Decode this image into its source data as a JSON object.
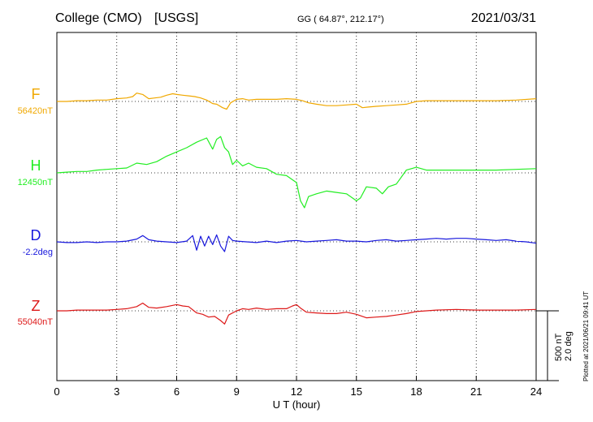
{
  "header": {
    "station": "College (CMO)",
    "source": "[USGS]",
    "coords": "GG ( 64.87°, 212.17°)",
    "date": "2021/03/31"
  },
  "chart_data": {
    "type": "line",
    "xlabel": "U T (hour)",
    "xlim": [
      0,
      24
    ],
    "xticks": [
      0,
      3,
      6,
      9,
      12,
      15,
      18,
      21,
      24
    ],
    "grid": true,
    "scale_bar": {
      "label1": "500 nT",
      "label2": "2.0 deg"
    },
    "series": [
      {
        "name": "F",
        "baseline_label": "56420nT",
        "color": "#f0a800",
        "x": [
          0,
          0.5,
          1,
          1.5,
          2,
          2.5,
          3,
          3.5,
          3.8,
          4.0,
          4.3,
          4.6,
          4.9,
          5.2,
          5.5,
          5.8,
          6.0,
          6.3,
          6.6,
          6.9,
          7.2,
          7.5,
          7.8,
          8.0,
          8.3,
          8.5,
          8.7,
          9.0,
          9.3,
          9.6,
          10,
          10.5,
          11,
          11.5,
          12,
          12.3,
          12.6,
          13,
          13.5,
          14,
          14.5,
          15,
          15.3,
          15.6,
          16,
          16.5,
          17,
          17.5,
          18,
          18.5,
          19,
          20,
          21,
          22,
          23,
          24
        ],
        "values": [
          0,
          0,
          5,
          5,
          10,
          10,
          20,
          25,
          35,
          60,
          50,
          20,
          25,
          30,
          45,
          55,
          50,
          45,
          40,
          35,
          25,
          10,
          -15,
          -20,
          -45,
          -55,
          -10,
          15,
          20,
          10,
          15,
          15,
          15,
          20,
          15,
          5,
          -10,
          -20,
          -30,
          -30,
          -25,
          -20,
          -45,
          -40,
          -35,
          -30,
          -25,
          -20,
          0,
          5,
          5,
          5,
          5,
          5,
          10,
          20
        ]
      },
      {
        "name": "H",
        "baseline_label": "12450nT",
        "color": "#22ee22",
        "x": [
          0,
          0.5,
          1,
          1.5,
          2,
          2.5,
          3,
          3.5,
          4,
          4.5,
          5,
          5.5,
          6,
          6.5,
          7,
          7.5,
          7.8,
          8,
          8.2,
          8.4,
          8.6,
          8.8,
          9,
          9.3,
          9.6,
          10,
          10.5,
          11,
          11.5,
          12,
          12.2,
          12.4,
          12.6,
          13,
          13.5,
          14,
          14.5,
          15,
          15.2,
          15.5,
          16,
          16.3,
          16.6,
          17,
          17.5,
          18,
          18.5,
          19,
          20,
          21,
          22,
          23,
          24
        ],
        "values": [
          0,
          5,
          10,
          10,
          20,
          25,
          30,
          35,
          70,
          60,
          80,
          120,
          150,
          180,
          220,
          250,
          170,
          240,
          260,
          180,
          150,
          60,
          90,
          50,
          70,
          40,
          30,
          -10,
          -20,
          -70,
          -200,
          -250,
          -170,
          -150,
          -130,
          -140,
          -150,
          -200,
          -180,
          -100,
          -110,
          -150,
          -100,
          -80,
          20,
          40,
          20,
          20,
          20,
          20,
          20,
          25,
          30
        ]
      },
      {
        "name": "D",
        "baseline_label": "-2.2deg",
        "color": "#1818dd",
        "x": [
          0,
          0.5,
          1,
          1.5,
          2,
          2.5,
          3,
          3.5,
          4,
          4.3,
          4.6,
          5,
          5.5,
          6,
          6.5,
          6.8,
          7,
          7.2,
          7.4,
          7.6,
          7.8,
          8,
          8.2,
          8.4,
          8.6,
          8.8,
          9,
          9.5,
          10,
          10.5,
          11,
          11.5,
          12,
          12.5,
          13,
          13.5,
          14,
          14.5,
          15,
          15.5,
          16,
          16.5,
          17,
          17.5,
          18,
          18.5,
          19,
          19.5,
          20,
          20.5,
          21,
          21.5,
          22,
          22.5,
          23,
          23.5,
          24
        ],
        "values": [
          0,
          -5,
          -5,
          0,
          -5,
          0,
          0,
          5,
          20,
          45,
          15,
          5,
          0,
          -5,
          5,
          45,
          -60,
          40,
          -30,
          40,
          -20,
          50,
          -30,
          -70,
          40,
          10,
          5,
          0,
          -5,
          5,
          -5,
          5,
          10,
          0,
          5,
          10,
          15,
          5,
          5,
          0,
          10,
          15,
          5,
          10,
          15,
          20,
          25,
          20,
          25,
          25,
          20,
          15,
          10,
          15,
          5,
          0,
          -10
        ]
      },
      {
        "name": "Z",
        "baseline_label": "55040nT",
        "color": "#dd1818",
        "x": [
          0,
          0.5,
          1,
          1.5,
          2,
          2.5,
          3,
          3.5,
          4,
          4.3,
          4.6,
          5,
          5.5,
          6,
          6.3,
          6.6,
          7,
          7.3,
          7.6,
          7.9,
          8.2,
          8.4,
          8.6,
          9,
          9.3,
          9.6,
          10,
          10.5,
          11,
          11.5,
          11.8,
          12,
          12.2,
          12.5,
          13,
          13.5,
          14,
          14.5,
          15,
          15.5,
          16,
          16.5,
          17,
          17.5,
          18,
          18.5,
          19,
          20,
          21,
          22,
          23,
          24
        ],
        "values": [
          0,
          0,
          5,
          5,
          5,
          5,
          10,
          15,
          30,
          55,
          25,
          20,
          30,
          45,
          35,
          30,
          -15,
          -25,
          -45,
          -40,
          -70,
          -95,
          -30,
          0,
          15,
          10,
          20,
          10,
          15,
          15,
          35,
          45,
          20,
          -10,
          -15,
          -20,
          -20,
          -10,
          -25,
          -50,
          -45,
          -40,
          -30,
          -20,
          -5,
          0,
          5,
          10,
          5,
          5,
          5,
          10
        ]
      }
    ]
  },
  "side_note": "Plotted at 2021/06/21 09:41 UT"
}
